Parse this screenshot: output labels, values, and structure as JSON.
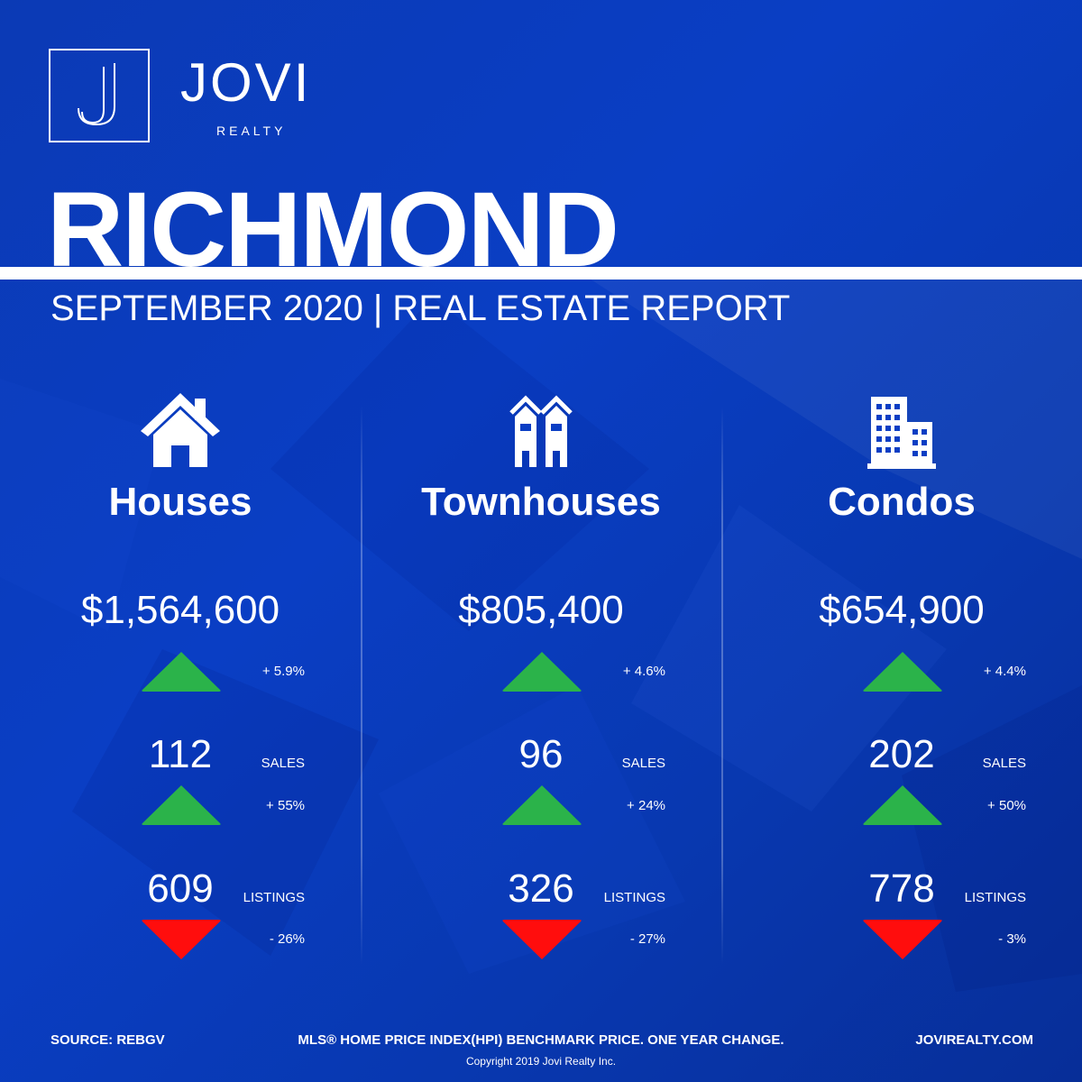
{
  "brand": {
    "name": "JOVI",
    "sub": "REALTY",
    "monogram": "J",
    "colors": {
      "background": "#0a3ec4",
      "up": "#2bb34a",
      "down": "#ff0d0d",
      "text": "#ffffff"
    }
  },
  "header": {
    "city": "RICHMOND",
    "subtitle": "SEPTEMBER 2020 | REAL ESTATE REPORT"
  },
  "categories": [
    {
      "name": "Houses",
      "icon": "house-icon",
      "price": "$1,564,600",
      "price_change": "+ 5.9%",
      "price_trend": "up",
      "sales": "112",
      "sales_label": "SALES",
      "sales_change": "+ 55%",
      "sales_trend": "up",
      "listings": "609",
      "listings_label": "LISTINGS",
      "listings_change": "- 26%",
      "listings_trend": "down"
    },
    {
      "name": "Townhouses",
      "icon": "townhouse-icon",
      "price": "$805,400",
      "price_change": "+ 4.6%",
      "price_trend": "up",
      "sales": "96",
      "sales_label": "SALES",
      "sales_change": "+ 24%",
      "sales_trend": "up",
      "listings": "326",
      "listings_label": "LISTINGS",
      "listings_change": "- 27%",
      "listings_trend": "down"
    },
    {
      "name": "Condos",
      "icon": "condo-building-icon",
      "price": "$654,900",
      "price_change": "+ 4.4%",
      "price_trend": "up",
      "sales": "202",
      "sales_label": "SALES",
      "sales_change": "+ 50%",
      "sales_trend": "up",
      "listings": "778",
      "listings_label": "LISTINGS",
      "listings_change": "- 3%",
      "listings_trend": "down"
    }
  ],
  "footer": {
    "source": "SOURCE:  REBGV",
    "note": "MLS® HOME PRICE INDEX(HPI) BENCHMARK PRICE. ONE YEAR CHANGE.",
    "website": "JOVIREALTY.COM",
    "copyright": "Copyright 2019 Jovi Realty Inc."
  }
}
